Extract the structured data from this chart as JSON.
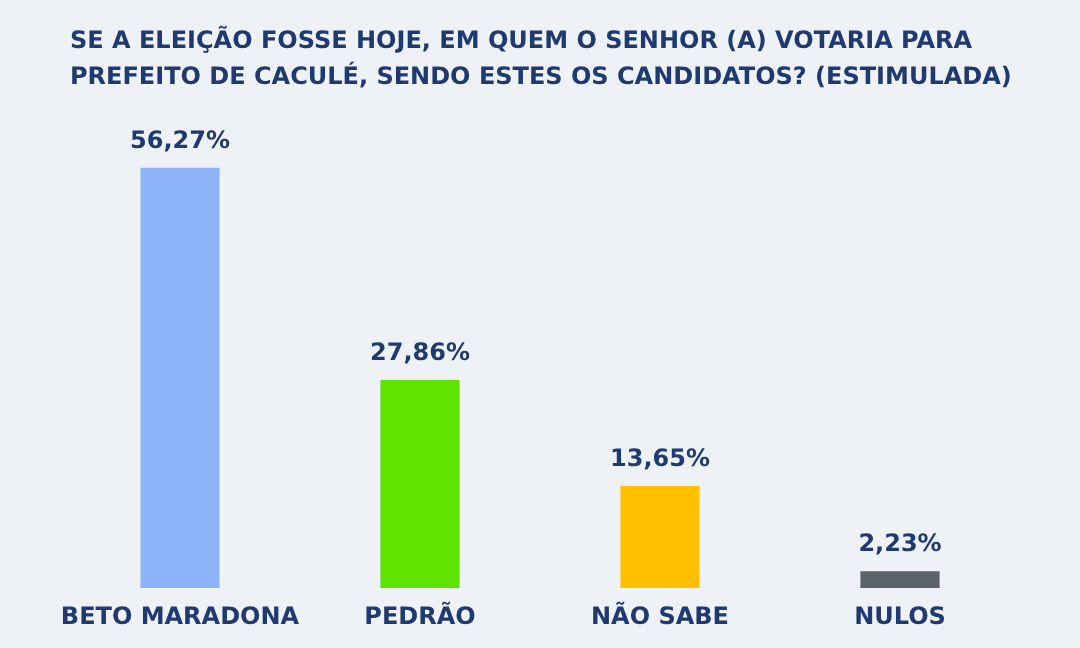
{
  "chart_data": {
    "type": "bar",
    "title": "SE A ELEIÇÃO FOSSE HOJE, EM QUEM O SENHOR (A) VOTARIA PARA PREFEITO DE CACULÉ, SENDO ESTES OS CANDIDATOS? (ESTIMULADA)",
    "categories": [
      "BETO MARADONA",
      "PEDRÃO",
      "NÃO SABE",
      "NULOS"
    ],
    "values": [
      56.27,
      27.86,
      13.65,
      2.23
    ],
    "colors": [
      "#8db4f8",
      "#5ee400",
      "#ffc000",
      "#5b6569"
    ],
    "value_labels": [
      "56,27%",
      "27,86%",
      "13,65%",
      "2,23%"
    ]
  }
}
